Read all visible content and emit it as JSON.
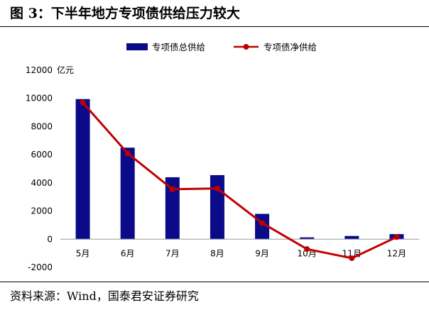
{
  "figure": {
    "title": "图 3：下半年地方专项债供给压力较大",
    "source": "资料来源：Wind，国泰君安证券研究"
  },
  "chart_data": {
    "type": "bar",
    "categories": [
      "5月",
      "6月",
      "7月",
      "8月",
      "9月",
      "10月",
      "11月",
      "12月"
    ],
    "series": [
      {
        "name": "专项债总供给",
        "type": "bar",
        "color": "#0b0b8a",
        "values": [
          9950,
          6500,
          4400,
          4550,
          1800,
          130,
          230,
          360
        ]
      },
      {
        "name": "专项债净供给",
        "type": "line",
        "color": "#c00000",
        "values": [
          9700,
          6100,
          3550,
          3600,
          1150,
          -700,
          -1350,
          150
        ]
      }
    ],
    "ylabel": "",
    "yunit": "亿元",
    "ylim": [
      -2000,
      12000
    ],
    "yticks": [
      -2000,
      0,
      2000,
      4000,
      6000,
      8000,
      10000,
      12000
    ],
    "grid": false,
    "legend_position": "top-center"
  }
}
